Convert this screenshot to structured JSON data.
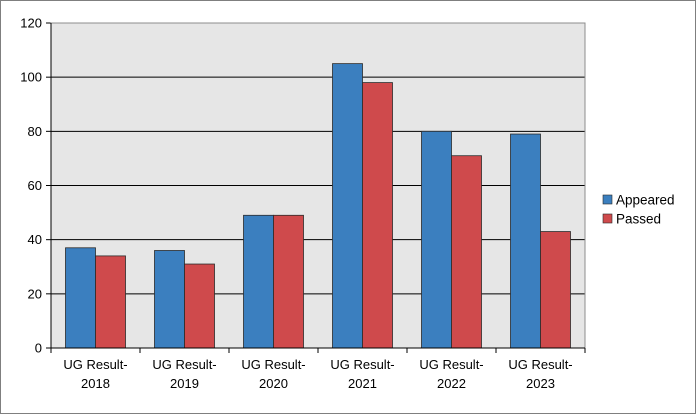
{
  "chart_data": {
    "type": "bar",
    "categories": [
      [
        "UG Result-",
        "2018"
      ],
      [
        "UG Result-",
        "2019"
      ],
      [
        "UG Result-",
        "2020"
      ],
      [
        "UG Result-",
        "2021"
      ],
      [
        "UG Result-",
        "2022"
      ],
      [
        "UG Result-",
        "2023"
      ]
    ],
    "series": [
      {
        "name": "Appeared",
        "color": "#3b7fbf",
        "values": [
          37,
          36,
          49,
          105,
          80,
          79
        ]
      },
      {
        "name": "Passed",
        "color": "#cf4a4c",
        "values": [
          34,
          31,
          49,
          98,
          71,
          43
        ]
      }
    ],
    "ylim": [
      0,
      120
    ],
    "yticks": [
      0,
      20,
      40,
      60,
      80,
      100,
      120
    ],
    "grid": true,
    "plot_background": "#e6e6e6",
    "legend_position": "right",
    "title": "",
    "xlabel": "",
    "ylabel": ""
  }
}
